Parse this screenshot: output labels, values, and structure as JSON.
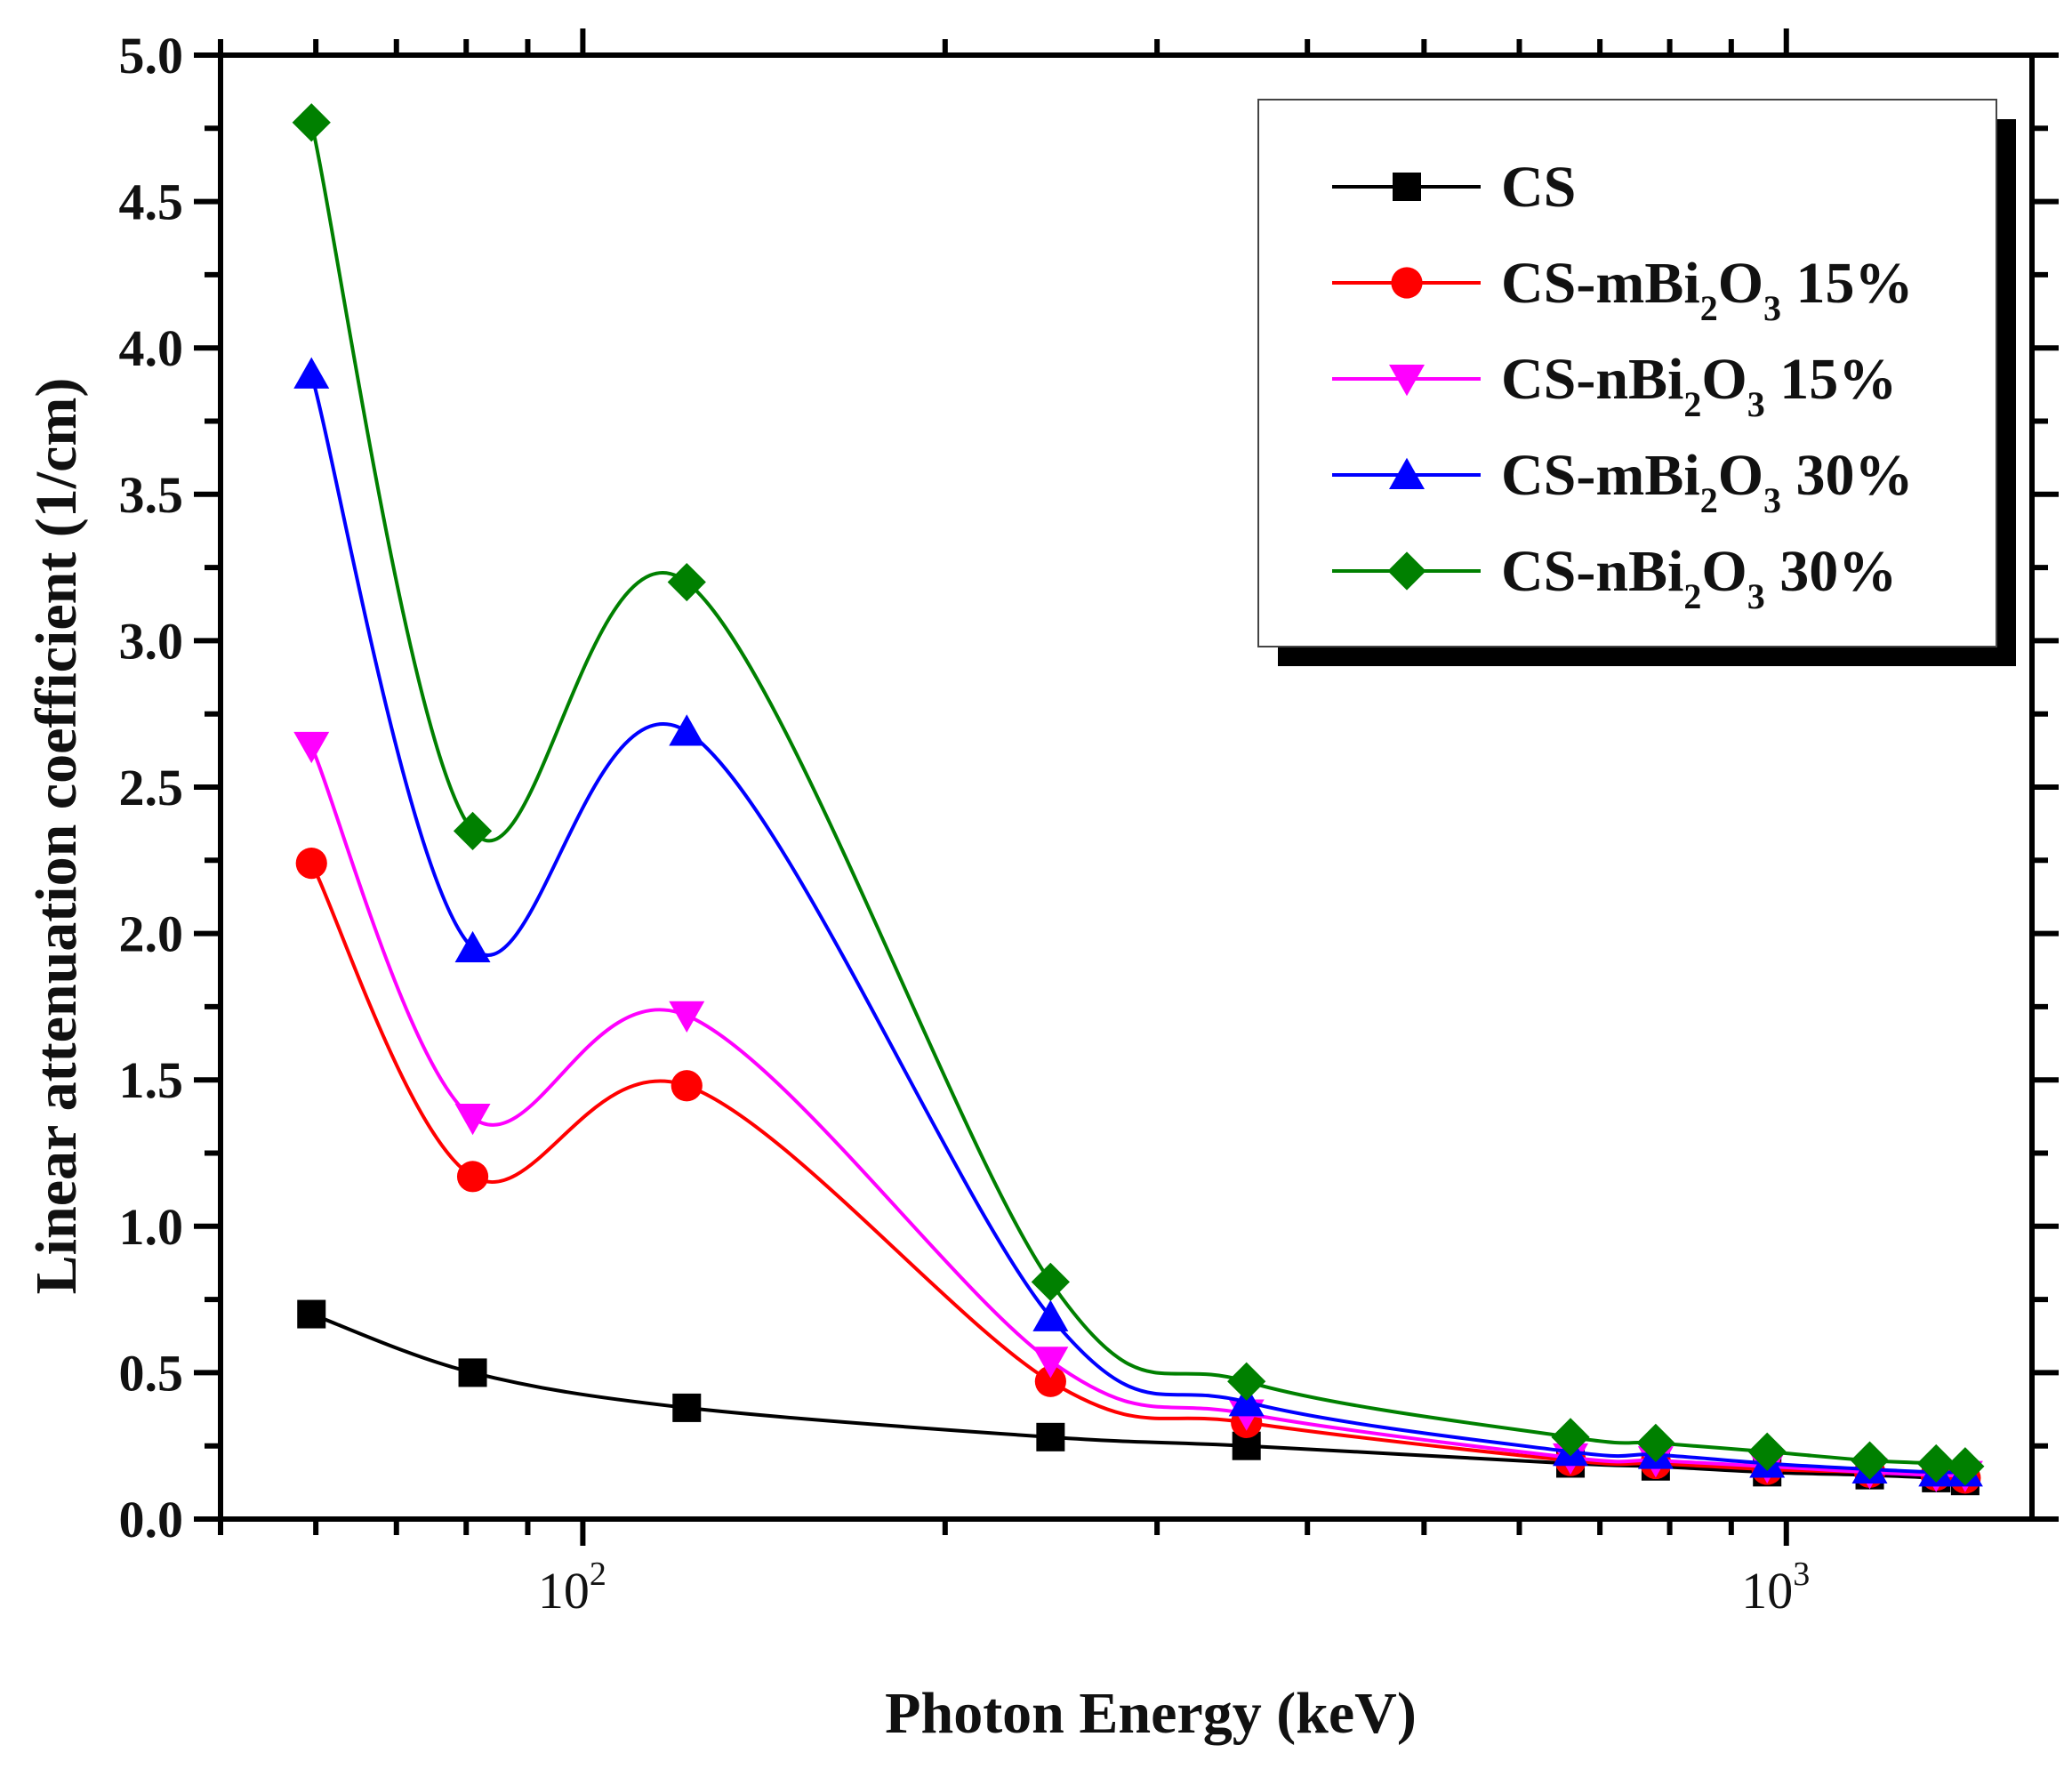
{
  "chart_data": {
    "type": "line",
    "xlabel": "Photon Energy (keV)",
    "ylabel": "Linear attenuation coefficient (1/cm)",
    "xscale": "log",
    "xlim": [
      50,
      1600
    ],
    "ylim": [
      0.0,
      5.0
    ],
    "yticks": [
      "0.0",
      "0.5",
      "1.0",
      "1.5",
      "2.0",
      "2.5",
      "3.0",
      "3.5",
      "4.0",
      "4.5",
      "5.0"
    ],
    "xticks": [
      {
        "value": 100,
        "base": "10",
        "exp": "2"
      },
      {
        "value": 1000,
        "base": "10",
        "exp": "3"
      }
    ],
    "legend_position": "top-right",
    "x": [
      59.5,
      81,
      122,
      244.7,
      356,
      661.7,
      778.9,
      964,
      1173,
      1332,
      1408
    ],
    "series": [
      {
        "name": "CS",
        "name_parts": {
          "pre": "CS",
          "mid": "",
          "sub2": "",
          "post": ""
        },
        "color": "#000000",
        "marker": "square",
        "values": [
          0.7,
          0.5,
          0.38,
          0.28,
          0.25,
          0.19,
          0.18,
          0.16,
          0.15,
          0.14,
          0.13
        ]
      },
      {
        "name": "CS-mBi2O3 15%",
        "name_parts": {
          "pre": "CS-mBi",
          "mid": "2",
          "o": "O",
          "sub2": "3",
          "post": " 15%"
        },
        "color": "#ff0000",
        "marker": "circle",
        "values": [
          2.24,
          1.17,
          1.48,
          0.47,
          0.33,
          0.2,
          0.19,
          0.17,
          0.16,
          0.15,
          0.14
        ]
      },
      {
        "name": "CS-nBi2O3 15%",
        "name_parts": {
          "pre": "CS-nBi",
          "mid": "2",
          "o": "O",
          "sub2": "3",
          "post": " 15%"
        },
        "color": "#ff00ff",
        "marker": "triangle-down",
        "values": [
          2.64,
          1.37,
          1.72,
          0.54,
          0.36,
          0.21,
          0.2,
          0.18,
          0.16,
          0.15,
          0.15
        ]
      },
      {
        "name": "CS-mBi2O3 30%",
        "name_parts": {
          "pre": "CS-mBi",
          "mid": "2",
          "o": "O",
          "sub2": "3",
          "post": " 30%"
        },
        "color": "#0000ff",
        "marker": "triangle-up",
        "values": [
          3.91,
          1.95,
          2.69,
          0.69,
          0.4,
          0.23,
          0.22,
          0.19,
          0.17,
          0.16,
          0.16
        ]
      },
      {
        "name": "CS-nBi2O3 30%",
        "name_parts": {
          "pre": "CS-nBi",
          "mid": "2",
          "o": "O",
          "sub2": "3",
          "post": " 30%"
        },
        "color": "#008000",
        "marker": "diamond",
        "values": [
          4.77,
          2.35,
          3.2,
          0.81,
          0.47,
          0.28,
          0.26,
          0.23,
          0.2,
          0.19,
          0.18
        ]
      }
    ]
  }
}
